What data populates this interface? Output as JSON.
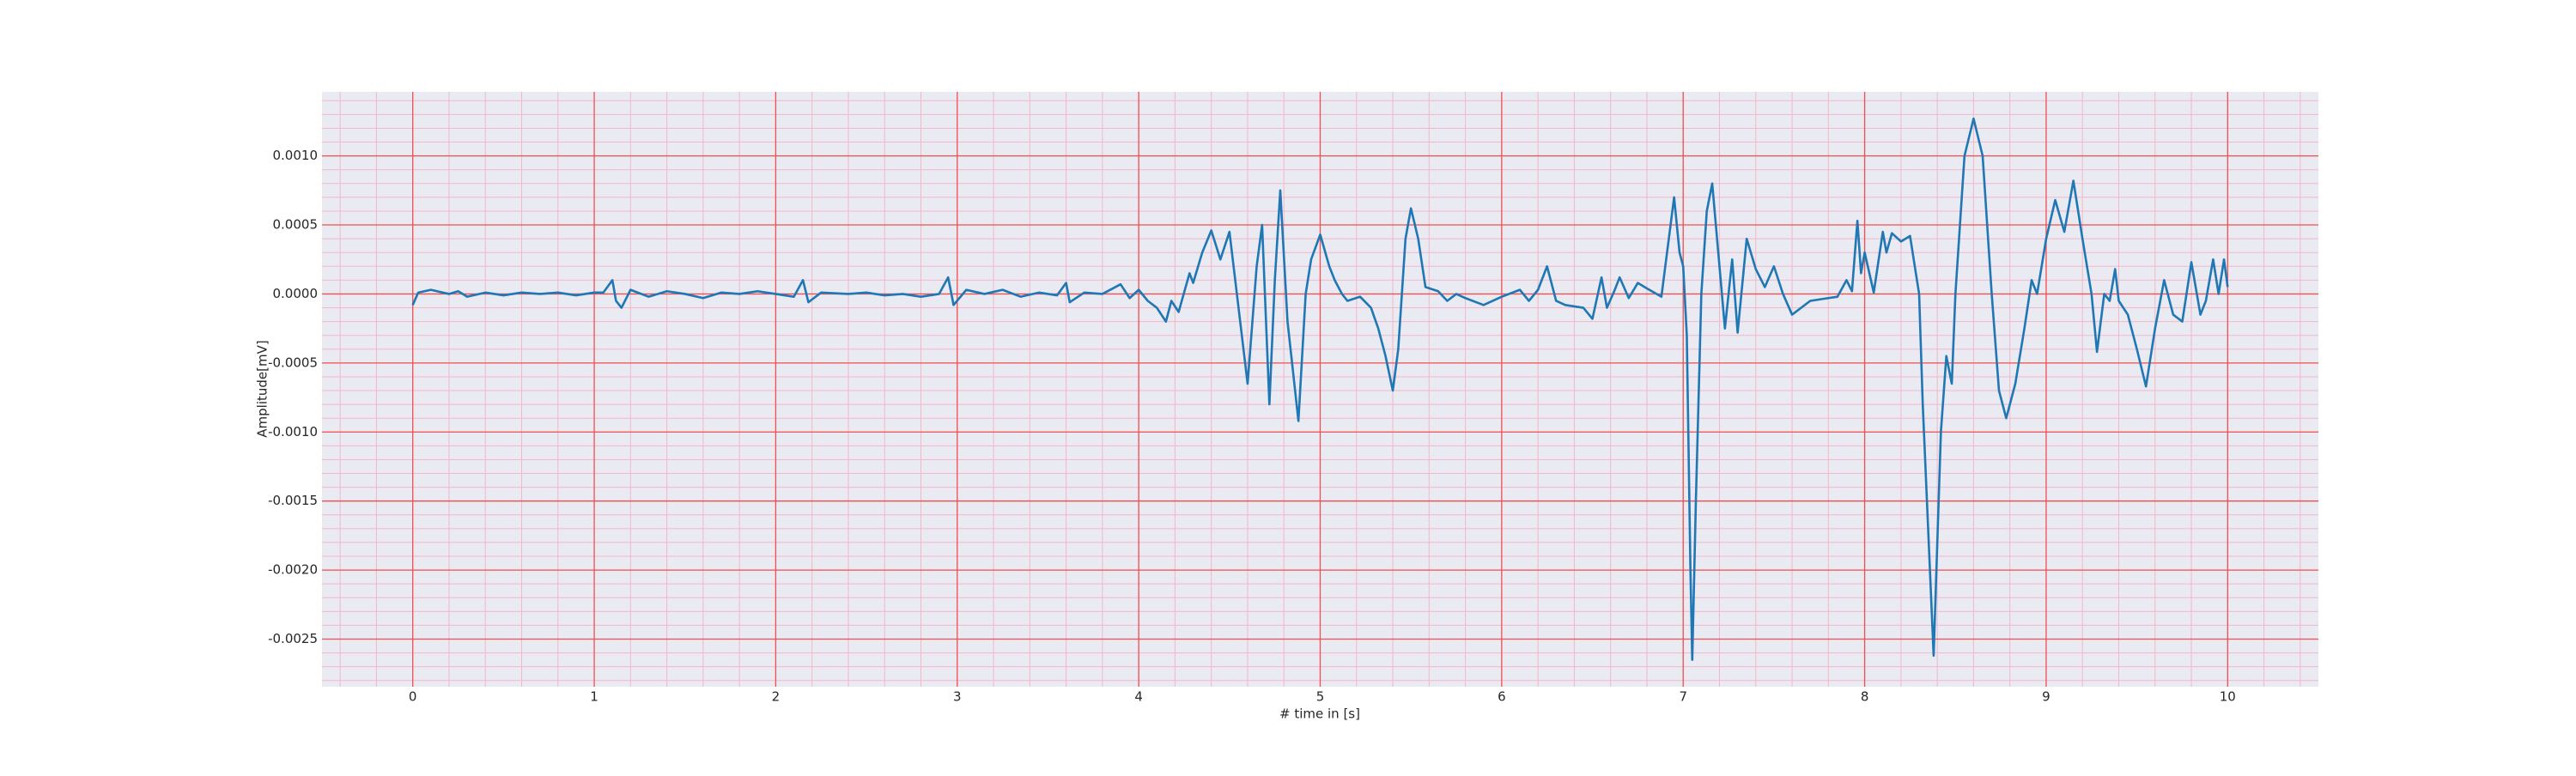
{
  "chart_data": {
    "type": "line",
    "xlabel": "# time in [s]",
    "ylabel": "Amplitude[mV]",
    "xlim": [
      -0.5,
      10.5
    ],
    "ylim": [
      -0.002845,
      0.001464
    ],
    "xticks": [
      0,
      1,
      2,
      3,
      4,
      5,
      6,
      7,
      8,
      9,
      10
    ],
    "yticks": [
      {
        "value": -0.0025,
        "label": "-0.0025"
      },
      {
        "value": -0.002,
        "label": "-0.0020"
      },
      {
        "value": -0.0015,
        "label": "-0.0015"
      },
      {
        "value": -0.001,
        "label": "-0.0010"
      },
      {
        "value": -0.0005,
        "label": "-0.0005"
      },
      {
        "value": 0,
        "label": "0.0000"
      },
      {
        "value": 0.0005,
        "label": "0.0005"
      },
      {
        "value": 0.001,
        "label": "0.0010"
      }
    ],
    "grid": true,
    "series": [
      {
        "color": "#1f77b4",
        "x": [
          0,
          0.03,
          0.1,
          0.2,
          0.25,
          0.3,
          0.4,
          0.5,
          0.6,
          0.7,
          0.8,
          0.9,
          1.0,
          1.05,
          1.1,
          1.12,
          1.15,
          1.2,
          1.3,
          1.4,
          1.5,
          1.6,
          1.7,
          1.8,
          1.9,
          2.0,
          2.1,
          2.15,
          2.18,
          2.25,
          2.4,
          2.5,
          2.6,
          2.7,
          2.8,
          2.9,
          2.95,
          2.98,
          3.05,
          3.15,
          3.25,
          3.35,
          3.45,
          3.55,
          3.6,
          3.62,
          3.7,
          3.8,
          3.9,
          3.95,
          4.0,
          4.05,
          4.1,
          4.15,
          4.18,
          4.22,
          4.28,
          4.3,
          4.35,
          4.4,
          4.45,
          4.5,
          4.55,
          4.6,
          4.65,
          4.68,
          4.72,
          4.75,
          4.78,
          4.82,
          4.88,
          4.92,
          4.95,
          5.0,
          5.05,
          5.08,
          5.12,
          5.15,
          5.22,
          5.28,
          5.32,
          5.36,
          5.4,
          5.43,
          5.47,
          5.5,
          5.54,
          5.58,
          5.65,
          5.7,
          5.75,
          5.8,
          5.9,
          6.0,
          6.1,
          6.15,
          6.2,
          6.25,
          6.3,
          6.35,
          6.45,
          6.5,
          6.55,
          6.58,
          6.62,
          6.65,
          6.7,
          6.75,
          6.8,
          6.88,
          6.95,
          6.98,
          7.0,
          7.02,
          7.04,
          7.05,
          7.07,
          7.1,
          7.13,
          7.16,
          7.2,
          7.23,
          7.27,
          7.3,
          7.35,
          7.4,
          7.45,
          7.5,
          7.55,
          7.6,
          7.7,
          7.8,
          7.85,
          7.9,
          7.93,
          7.96,
          7.98,
          8.0,
          8.05,
          8.1,
          8.12,
          8.15,
          8.2,
          8.25,
          8.3,
          8.32,
          8.38,
          8.42,
          8.45,
          8.48,
          8.5,
          8.55,
          8.6,
          8.65,
          8.7,
          8.74,
          8.78,
          8.83,
          8.88,
          8.92,
          8.95,
          9.0,
          9.05,
          9.1,
          9.15,
          9.2,
          9.25,
          9.28,
          9.32,
          9.35,
          9.38,
          9.4,
          9.45,
          9.5,
          9.55,
          9.6,
          9.65,
          9.7,
          9.75,
          9.8,
          9.85,
          9.88,
          9.92,
          9.95,
          9.98,
          10.0
        ],
        "values": [
          -8e-05,
          1e-05,
          3e-05,
          0,
          2e-05,
          -2e-05,
          1e-05,
          -1e-05,
          1e-05,
          0,
          1e-05,
          -1e-05,
          1e-05,
          1e-05,
          0.0001,
          -5e-05,
          -0.0001,
          3e-05,
          -2e-05,
          2e-05,
          0,
          -3e-05,
          1e-05,
          0,
          2e-05,
          0,
          -2e-05,
          0.0001,
          -6e-05,
          1e-05,
          0,
          1e-05,
          -1e-05,
          0,
          -2e-05,
          0,
          0.00012,
          -8e-05,
          3e-05,
          0,
          3e-05,
          -2e-05,
          1e-05,
          -1e-05,
          8e-05,
          -6e-05,
          1e-05,
          0,
          7e-05,
          -3e-05,
          3e-05,
          -5e-05,
          -0.0001,
          -0.0002,
          -5e-05,
          -0.00013,
          0.00015,
          8e-05,
          0.0003,
          0.00046,
          0.00025,
          0.00045,
          -0.0001,
          -0.00065,
          0.0002,
          0.0005,
          -0.0008,
          0.0001,
          0.00075,
          -0.0002,
          -0.00092,
          0,
          0.00025,
          0.00043,
          0.0002,
          0.0001,
          0,
          -5e-05,
          -2e-05,
          -0.0001,
          -0.00025,
          -0.00045,
          -0.0007,
          -0.0004,
          0.0004,
          0.00062,
          0.0004,
          5e-05,
          2e-05,
          -5e-05,
          0,
          -3e-05,
          -8e-05,
          -2e-05,
          3e-05,
          -5e-05,
          3e-05,
          0.0002,
          -5e-05,
          -8e-05,
          -0.0001,
          -0.00018,
          0.00012,
          -0.0001,
          2e-05,
          0.00012,
          -3e-05,
          8e-05,
          4e-05,
          -2e-05,
          0.0007,
          0.0003,
          0.0002,
          -0.0003,
          -0.002,
          -0.00265,
          -0.0015,
          0,
          0.0006,
          0.0008,
          0.0002,
          -0.00025,
          0.00025,
          -0.00028,
          0.0004,
          0.00018,
          5e-05,
          0.0002,
          0,
          -0.00015,
          -5e-05,
          -3e-05,
          -2e-05,
          0.0001,
          2e-05,
          0.00053,
          0.00015,
          0.0003,
          1e-05,
          0.00045,
          0.0003,
          0.00044,
          0.00038,
          0.00042,
          0,
          -0.0008,
          -0.00262,
          -0.001,
          -0.00045,
          -0.00065,
          0,
          0.001,
          0.00127,
          0.001,
          0,
          -0.0007,
          -0.0009,
          -0.00065,
          -0.00025,
          0.0001,
          0,
          0.0004,
          0.00068,
          0.00045,
          0.00082,
          0.0004,
          0,
          -0.00042,
          0,
          -5e-05,
          0.00018,
          -5e-05,
          -0.00015,
          -0.0004,
          -0.00067,
          -0.00025,
          0.0001,
          -0.00015,
          -0.0002,
          0.00023,
          -0.00015,
          -5e-05,
          0.00025,
          0,
          0.00025,
          5e-05
        ]
      }
    ]
  }
}
